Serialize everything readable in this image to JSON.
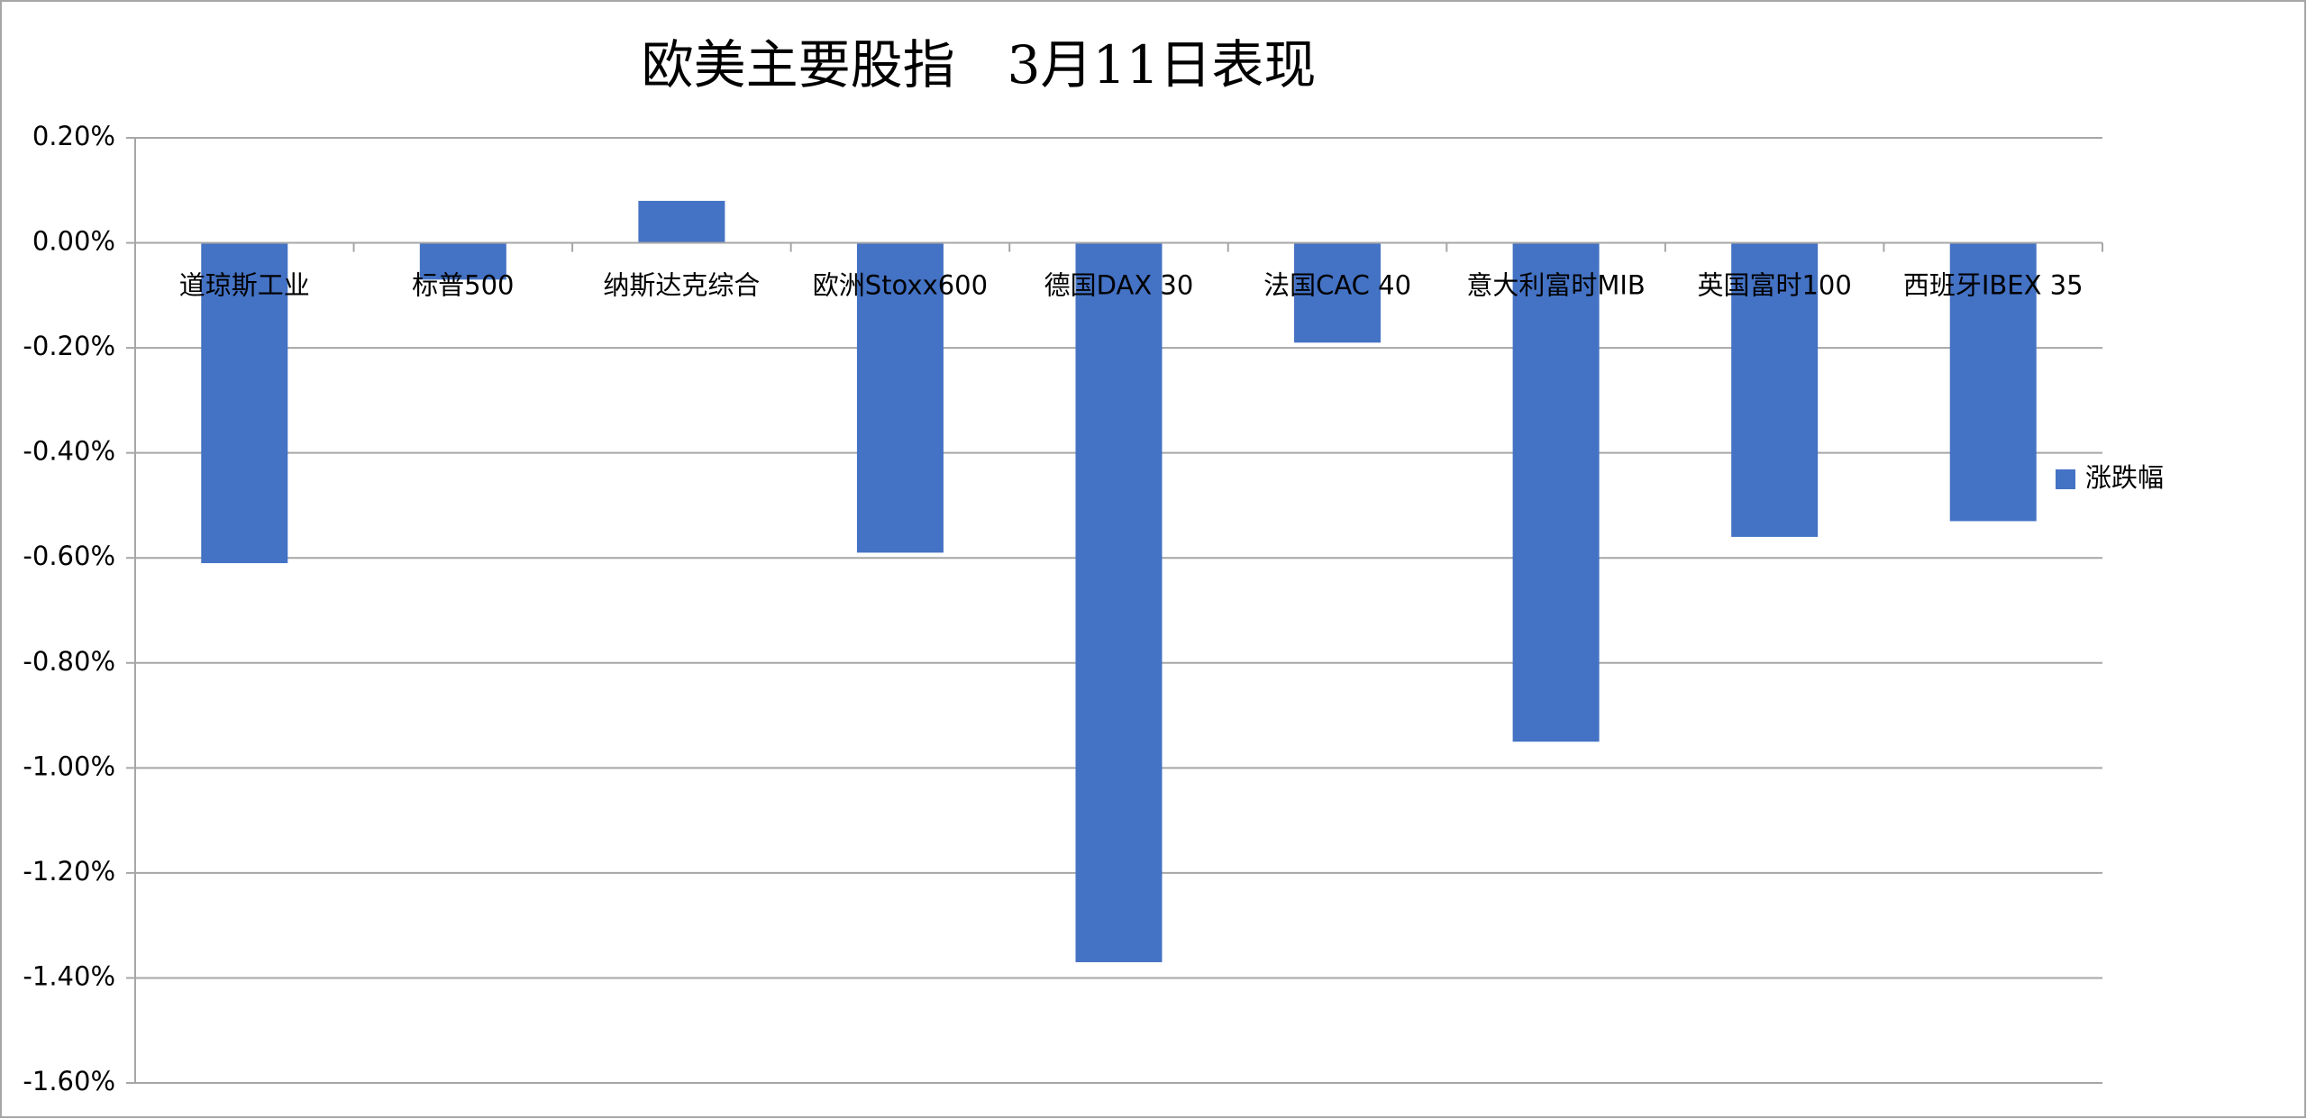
{
  "chart_data": {
    "type": "bar",
    "title": "欧美主要股指　3月11日表现",
    "categories": [
      "道琼斯工业",
      "标普500",
      "纳斯达克综合",
      "欧洲Stoxx600",
      "德国DAX 30",
      "法国CAC 40",
      "意大利富时MIB",
      "英国富时100",
      "西班牙IBEX 35"
    ],
    "series": [
      {
        "name": "涨跌幅",
        "color": "#4472c4",
        "values": [
          -0.61,
          -0.07,
          0.08,
          -0.59,
          -1.37,
          -0.19,
          -0.95,
          -0.56,
          -0.53
        ]
      }
    ],
    "ylim": [
      -1.6,
      0.2
    ],
    "yticks": [
      {
        "value": -1.6,
        "label": "-1.60%"
      },
      {
        "value": -1.4,
        "label": "-1.40%"
      },
      {
        "value": -1.2,
        "label": "-1.20%"
      },
      {
        "value": -1.0,
        "label": "-1.00%"
      },
      {
        "value": -0.8,
        "label": "-0.80%"
      },
      {
        "value": -0.6,
        "label": "-0.60%"
      },
      {
        "value": -0.4,
        "label": "-0.40%"
      },
      {
        "value": -0.2,
        "label": "-0.20%"
      },
      {
        "value": 0,
        "label": "0.00%"
      },
      {
        "value": 0.2,
        "label": "0.20%"
      }
    ],
    "grid": true,
    "legend": "right"
  }
}
